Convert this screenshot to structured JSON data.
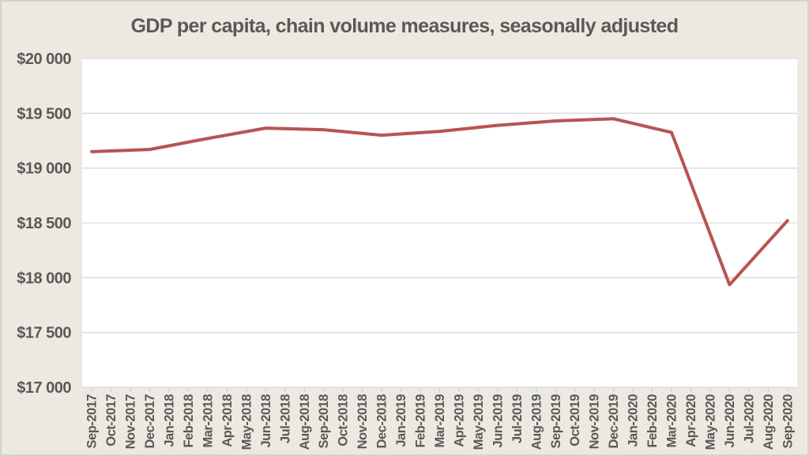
{
  "window": {
    "background": "#ece9e0",
    "border_color": "#d2d2d2"
  },
  "chart_data": {
    "type": "line",
    "title": "GDP per capita, chain volume measures, seasonally adjusted",
    "title_color": "#595959",
    "axis_label_color": "#595959",
    "plot_bg": "#ffffff",
    "gridline_color": "#dadada",
    "tick_color": "#c9c9c9",
    "grid": "horizontal",
    "legend": "none",
    "ylim": [
      17000,
      20000
    ],
    "y_ticks": [
      {
        "value": 20000,
        "label": "$20 000"
      },
      {
        "value": 19500,
        "label": "$19 500"
      },
      {
        "value": 19000,
        "label": "$19 000"
      },
      {
        "value": 18500,
        "label": "$18 500"
      },
      {
        "value": 18000,
        "label": "$18 000"
      },
      {
        "value": 17500,
        "label": "$17 500"
      },
      {
        "value": 17000,
        "label": "$17 000"
      }
    ],
    "x_labels": [
      "Sep-2017",
      "Oct-2017",
      "Nov-2017",
      "Dec-2017",
      "Jan-2018",
      "Feb-2018",
      "Mar-2018",
      "Apr-2018",
      "May-2018",
      "Jun-2018",
      "Jul-2018",
      "Aug-2018",
      "Sep-2018",
      "Oct-2018",
      "Nov-2018",
      "Dec-2018",
      "Jan-2019",
      "Feb-2019",
      "Mar-2019",
      "Apr-2019",
      "May-2019",
      "Jun-2019",
      "Jul-2019",
      "Aug-2019",
      "Sep-2019",
      "Oct-2019",
      "Nov-2019",
      "Dec-2019",
      "Jan-2020",
      "Feb-2020",
      "Mar-2020",
      "Apr-2020",
      "May-2020",
      "Jun-2020",
      "Jul-2020",
      "Aug-2020",
      "Sep-2020"
    ],
    "series": [
      {
        "name": "GDP per capita",
        "color": "#c0504d",
        "stroke_width": 4,
        "points": [
          {
            "label": "Sep-2017",
            "value": 19150
          },
          {
            "label": "Dec-2017",
            "value": 19170
          },
          {
            "label": "Mar-2018",
            "value": 19270
          },
          {
            "label": "Jun-2018",
            "value": 19365
          },
          {
            "label": "Sep-2018",
            "value": 19350
          },
          {
            "label": "Dec-2018",
            "value": 19300
          },
          {
            "label": "Mar-2019",
            "value": 19335
          },
          {
            "label": "Jun-2019",
            "value": 19390
          },
          {
            "label": "Sep-2019",
            "value": 19430
          },
          {
            "label": "Dec-2019",
            "value": 19450
          },
          {
            "label": "Mar-2020",
            "value": 19325
          },
          {
            "label": "Jun-2020",
            "value": 17935
          },
          {
            "label": "Sep-2020",
            "value": 18520
          }
        ]
      }
    ]
  }
}
